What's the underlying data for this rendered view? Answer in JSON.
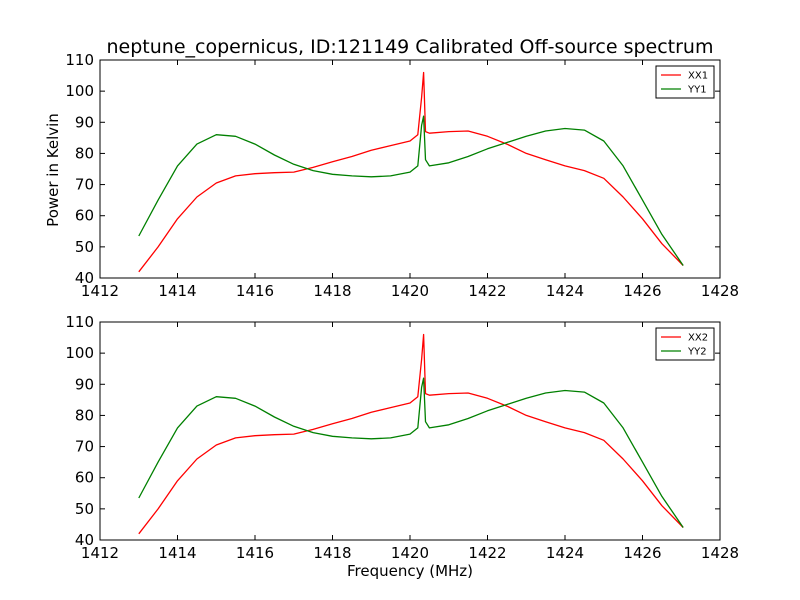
{
  "chart_data": [
    {
      "type": "line",
      "title": "neptune_copernicus, ID:121149 Calibrated Off-source spectrum",
      "xlabel": "",
      "ylabel": "Power in Kelvin",
      "xlim": [
        1412,
        1428
      ],
      "ylim": [
        40,
        110
      ],
      "xticks": [
        1412,
        1414,
        1416,
        1418,
        1420,
        1422,
        1424,
        1426,
        1428
      ],
      "yticks": [
        40,
        50,
        60,
        70,
        80,
        90,
        100,
        110
      ],
      "legend_position": "top-right",
      "series": [
        {
          "name": "XX1",
          "color": "#ff0000",
          "x": [
            1413,
            1413.5,
            1414,
            1414.5,
            1415,
            1415.5,
            1416,
            1416.5,
            1417,
            1417.5,
            1418,
            1418.5,
            1419,
            1419.5,
            1420,
            1420.2,
            1420.3,
            1420.35,
            1420.4,
            1420.5,
            1421,
            1421.5,
            1422,
            1422.5,
            1423,
            1423.5,
            1424,
            1424.5,
            1425,
            1425.5,
            1426,
            1426.5,
            1427.05
          ],
          "y": [
            42,
            50,
            59,
            66,
            70.5,
            72.8,
            73.5,
            73.8,
            74,
            75.5,
            77.3,
            79,
            81,
            82.5,
            84,
            86,
            98,
            106,
            87,
            86.5,
            87,
            87.2,
            85.5,
            83,
            80,
            78,
            76,
            74.5,
            72,
            66,
            59,
            51,
            44
          ]
        },
        {
          "name": "YY1",
          "color": "#008000",
          "x": [
            1413,
            1413.5,
            1414,
            1414.5,
            1415,
            1415.5,
            1416,
            1416.5,
            1417,
            1417.5,
            1418,
            1418.5,
            1419,
            1419.5,
            1420,
            1420.2,
            1420.3,
            1420.35,
            1420.4,
            1420.5,
            1421,
            1421.5,
            1422,
            1422.5,
            1423,
            1423.5,
            1424,
            1424.5,
            1425,
            1425.5,
            1426,
            1426.5,
            1427.05
          ],
          "y": [
            53.5,
            65,
            76,
            83,
            86,
            85.5,
            83,
            79.5,
            76.5,
            74.5,
            73.3,
            72.8,
            72.5,
            72.8,
            74,
            76,
            89,
            92,
            78,
            76,
            77,
            79,
            81.5,
            83.5,
            85.5,
            87.2,
            88,
            87.5,
            84,
            76,
            65,
            54,
            44
          ]
        }
      ]
    },
    {
      "type": "line",
      "title": "",
      "xlabel": "Frequency (MHz)",
      "ylabel": "",
      "xlim": [
        1412,
        1428
      ],
      "ylim": [
        40,
        110
      ],
      "xticks": [
        1412,
        1414,
        1416,
        1418,
        1420,
        1422,
        1424,
        1426,
        1428
      ],
      "yticks": [
        40,
        50,
        60,
        70,
        80,
        90,
        100,
        110
      ],
      "legend_position": "top-right",
      "series": [
        {
          "name": "XX2",
          "color": "#ff0000",
          "x": [
            1413,
            1413.5,
            1414,
            1414.5,
            1415,
            1415.5,
            1416,
            1416.5,
            1417,
            1417.5,
            1418,
            1418.5,
            1419,
            1419.5,
            1420,
            1420.2,
            1420.3,
            1420.35,
            1420.4,
            1420.5,
            1421,
            1421.5,
            1422,
            1422.5,
            1423,
            1423.5,
            1424,
            1424.5,
            1425,
            1425.5,
            1426,
            1426.5,
            1427.05
          ],
          "y": [
            42,
            50,
            59,
            66,
            70.5,
            72.8,
            73.5,
            73.8,
            74,
            75.5,
            77.3,
            79,
            81,
            82.5,
            84,
            86,
            98,
            106,
            87,
            86.5,
            87,
            87.2,
            85.5,
            83,
            80,
            78,
            76,
            74.5,
            72,
            66,
            59,
            51,
            44
          ]
        },
        {
          "name": "YY2",
          "color": "#008000",
          "x": [
            1413,
            1413.5,
            1414,
            1414.5,
            1415,
            1415.5,
            1416,
            1416.5,
            1417,
            1417.5,
            1418,
            1418.5,
            1419,
            1419.5,
            1420,
            1420.2,
            1420.3,
            1420.35,
            1420.4,
            1420.5,
            1421,
            1421.5,
            1422,
            1422.5,
            1423,
            1423.5,
            1424,
            1424.5,
            1425,
            1425.5,
            1426,
            1426.5,
            1427.05
          ],
          "y": [
            53.5,
            65,
            76,
            83,
            86,
            85.5,
            83,
            79.5,
            76.5,
            74.5,
            73.3,
            72.8,
            72.5,
            72.8,
            74,
            76,
            89,
            92,
            78,
            76,
            77,
            79,
            81.5,
            83.5,
            85.5,
            87.2,
            88,
            87.5,
            84,
            76,
            65,
            54,
            44
          ]
        }
      ]
    }
  ]
}
